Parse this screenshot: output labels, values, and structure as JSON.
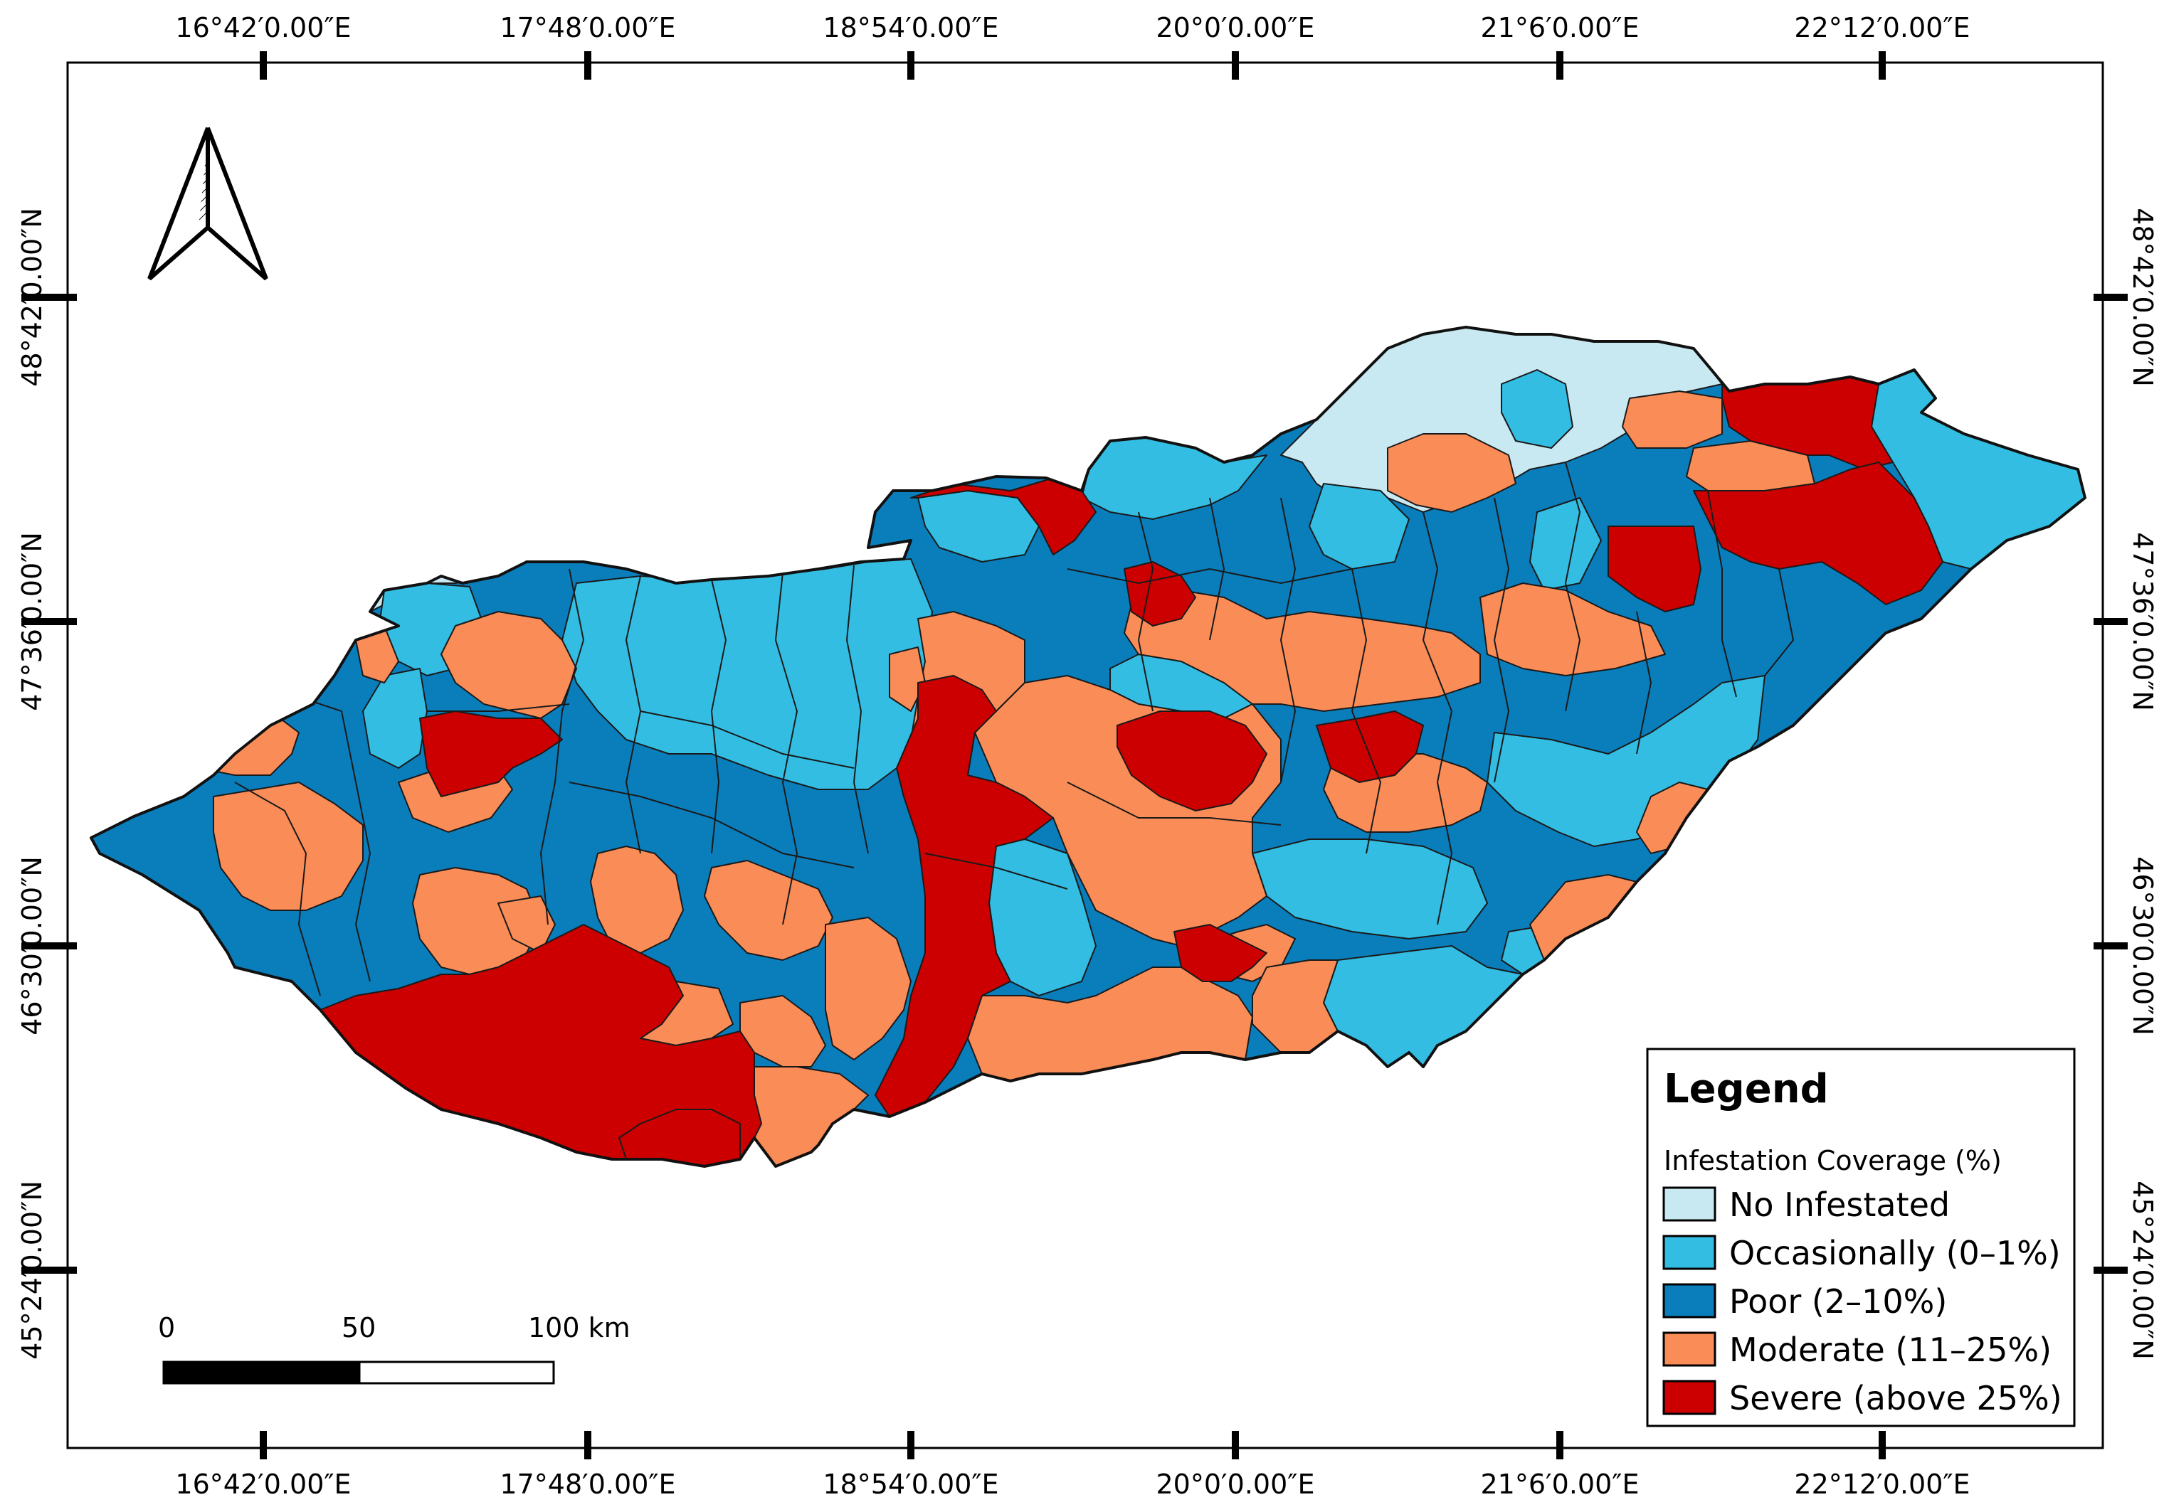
{
  "colors": {
    "no_infestation": "#c8e8f2",
    "occasionally": "#33bde3",
    "poor": "#0a7dbb",
    "moderate": "#fa8c57",
    "severe": "#cc0000"
  },
  "graticule": {
    "longitudes": [
      "16°42′0.00″E",
      "17°48′0.00″E",
      "18°54′0.00″E",
      "20°0′0.00″E",
      "21°6′0.00″E",
      "22°12′0.00″E"
    ],
    "latitudes": [
      "48°42′0.00″N",
      "47°36′0.00″N",
      "46°30′0.00″N",
      "45°24′0.00″N"
    ]
  },
  "legend": {
    "title": "Legend",
    "subtitle": "Infestation Coverage (%)",
    "items": [
      {
        "key": "no_infestation",
        "label": "No Infestated"
      },
      {
        "key": "occasionally",
        "label": "Occasionally (0–1%)"
      },
      {
        "key": "poor",
        "label": "Poor (2–10%)"
      },
      {
        "key": "moderate",
        "label": "Moderate (11–25%)"
      },
      {
        "key": "severe",
        "label": "Severe (above 25%)"
      }
    ]
  },
  "scale_bar": {
    "labels": [
      "0",
      "50",
      "100 km"
    ]
  },
  "north_arrow": {
    "icon": "north-arrow-icon"
  }
}
